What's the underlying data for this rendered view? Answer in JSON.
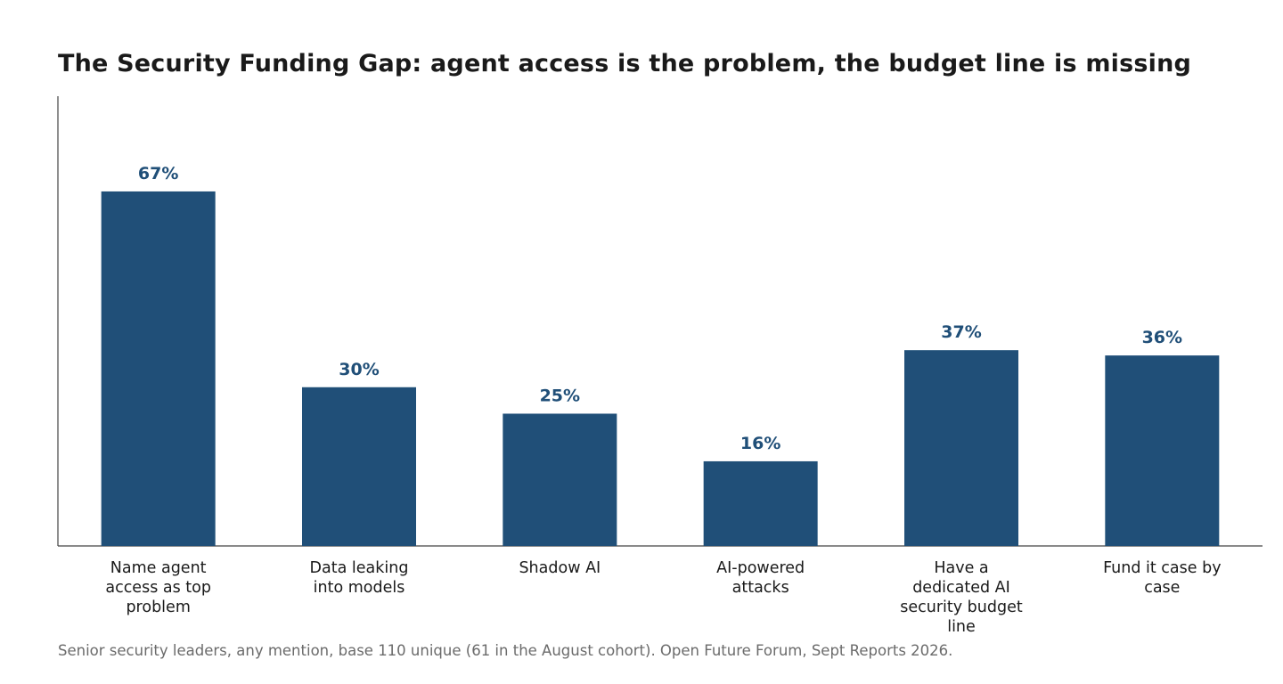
{
  "chart_data": {
    "type": "bar",
    "title": "The Security Funding Gap: agent access is the problem, the budget line is missing",
    "categories": [
      [
        "Name agent",
        "access as top",
        "problem"
      ],
      [
        "Data leaking",
        "into models"
      ],
      [
        "Shadow AI"
      ],
      [
        "AI-powered",
        "attacks"
      ],
      [
        "Have a",
        "dedicated AI",
        "security budget",
        "line"
      ],
      [
        "Fund it case by",
        "case"
      ]
    ],
    "values": [
      67,
      30,
      25,
      16,
      37,
      36
    ],
    "data_labels": [
      "67%",
      "30%",
      "25%",
      "16%",
      "37%",
      "36%"
    ],
    "ylim": [
      0,
      85
    ],
    "grid": false,
    "bar_color": "#204f78",
    "label_color": "#204f78",
    "footnote": "Senior security leaders, any mention, base 110 unique (61 in the August cohort). Open Future Forum, Sept Reports 2026."
  }
}
